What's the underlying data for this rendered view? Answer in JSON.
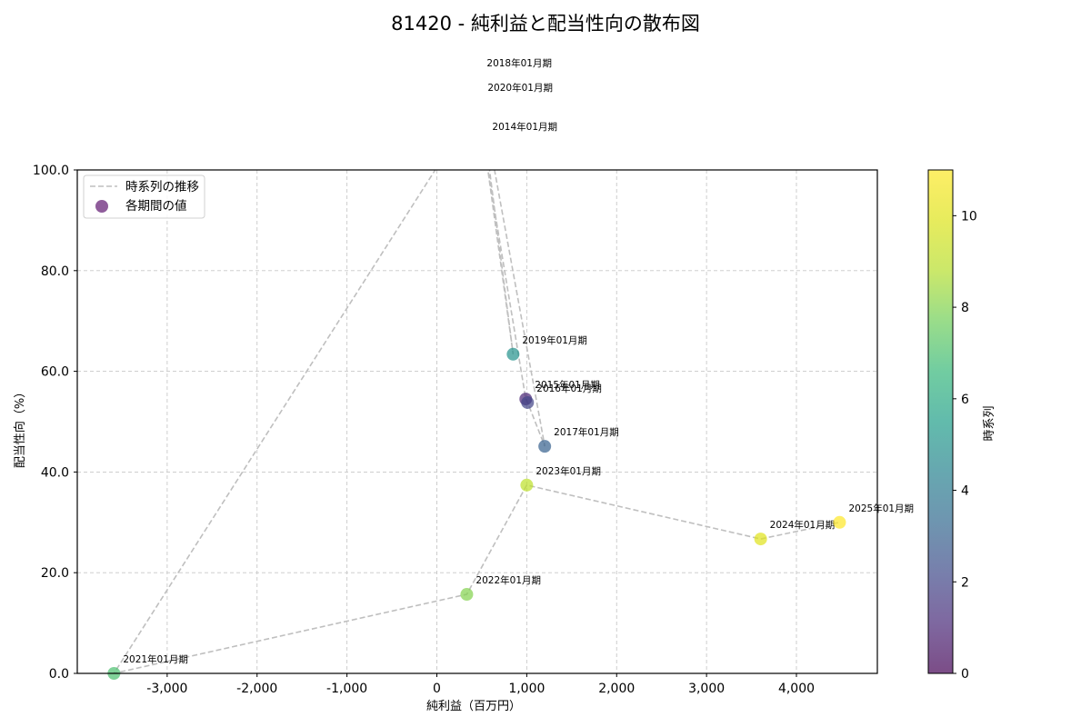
{
  "chart_data": {
    "type": "scatter",
    "title": "81420 - 純利益と配当性向の散布図",
    "xlabel": "純利益（百万円）",
    "ylabel": "配当性向（%）",
    "xlim": [
      -4000,
      4900
    ],
    "ylim": [
      0,
      100
    ],
    "x_ticks": [
      -3000,
      -2000,
      -1000,
      0,
      1000,
      2000,
      3000,
      4000
    ],
    "x_tick_labels": [
      "-3,000",
      "-2,000",
      "-1,000",
      "0",
      "1,000",
      "2,000",
      "3,000",
      "4,000"
    ],
    "y_ticks": [
      0,
      20,
      40,
      60,
      80,
      100
    ],
    "y_tick_labels": [
      "0.0",
      "20.0",
      "40.0",
      "60.0",
      "80.0",
      "100.0"
    ],
    "grid": true,
    "legend": {
      "position": "upper left",
      "entries": [
        {
          "label": "時系列の推移",
          "kind": "dashed-line",
          "color": "#bfbfbf"
        },
        {
          "label": "各期間の値",
          "kind": "marker",
          "color": "#7b3f8a"
        }
      ]
    },
    "colorbar": {
      "label": "時系列",
      "range": [
        0,
        11
      ],
      "ticks": [
        0,
        2,
        4,
        6,
        8,
        10
      ],
      "colormap": "viridis (alpha 0.7)"
    },
    "points": [
      {
        "label": "2014年01月期",
        "t": 0,
        "x": 515,
        "y": 105.8
      },
      {
        "label": "2015年01月期",
        "t": 1,
        "x": 989,
        "y": 54.5
      },
      {
        "label": "2016年01月期",
        "t": 2,
        "x": 1009,
        "y": 53.8
      },
      {
        "label": "2017年01月期",
        "t": 3,
        "x": 1200,
        "y": 45.1
      },
      {
        "label": "2018年01月期",
        "t": 4,
        "x": 454,
        "y": 118.4
      },
      {
        "label": "2019年01月期",
        "t": 5,
        "x": 848,
        "y": 63.4
      },
      {
        "label": "2020年01月期",
        "t": 6,
        "x": 464,
        "y": 113.5
      },
      {
        "label": "2021年01月期",
        "t": 7,
        "x": -3592,
        "y": 0.0
      },
      {
        "label": "2022年01月期",
        "t": 8,
        "x": 333,
        "y": 15.7
      },
      {
        "label": "2023年01月期",
        "t": 9,
        "x": 1000,
        "y": 37.4
      },
      {
        "label": "2024年01月期",
        "t": 10,
        "x": 3602,
        "y": 26.7
      },
      {
        "label": "2025年01月期",
        "t": 11,
        "x": 4480,
        "y": 30.0
      }
    ]
  }
}
